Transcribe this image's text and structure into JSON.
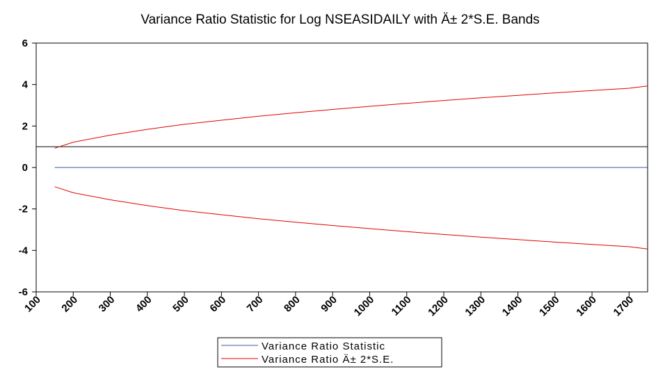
{
  "chart_data": {
    "type": "line",
    "title": "Variance Ratio Statistic for Log NSEASIDAILY with Ä± 2*S.E. Bands",
    "xlabel": "",
    "ylabel": "",
    "xlim": [
      100,
      1750
    ],
    "ylim": [
      -6,
      6
    ],
    "x_ticks": [
      "100",
      "200",
      "300",
      "400",
      "500",
      "600",
      "700",
      "800",
      "900",
      "1000",
      "1100",
      "1200",
      "1300",
      "1400",
      "1500",
      "1600",
      "1700"
    ],
    "y_ticks": [
      "6",
      "4",
      "2",
      "0",
      "-2",
      "-4",
      "-6"
    ],
    "reference_line": 1,
    "grid": false,
    "legend_position": "bottom-center",
    "series": [
      {
        "name": "Variance Ratio Statistic",
        "color": "#3a5a9a",
        "x": [
          150,
          1750
        ],
        "y": [
          0,
          0
        ]
      },
      {
        "name": "Variance Ratio Ä± 2*S.E.",
        "color": "#e00000",
        "x": [
          150,
          200,
          300,
          400,
          500,
          600,
          700,
          800,
          900,
          1000,
          1100,
          1200,
          1300,
          1400,
          1500,
          1600,
          1700,
          1750
        ],
        "y": [
          0.93,
          1.22,
          1.56,
          1.84,
          2.08,
          2.28,
          2.47,
          2.64,
          2.8,
          2.95,
          3.09,
          3.23,
          3.36,
          3.48,
          3.6,
          3.71,
          3.82,
          3.93
        ]
      },
      {
        "name": "",
        "color": "#e00000",
        "x": [
          150,
          200,
          300,
          400,
          500,
          600,
          700,
          800,
          900,
          1000,
          1100,
          1200,
          1300,
          1400,
          1500,
          1600,
          1700,
          1750
        ],
        "y": [
          -0.93,
          -1.22,
          -1.56,
          -1.84,
          -2.08,
          -2.28,
          -2.47,
          -2.64,
          -2.8,
          -2.95,
          -3.09,
          -3.23,
          -3.36,
          -3.48,
          -3.6,
          -3.71,
          -3.82,
          -3.93
        ]
      }
    ]
  }
}
